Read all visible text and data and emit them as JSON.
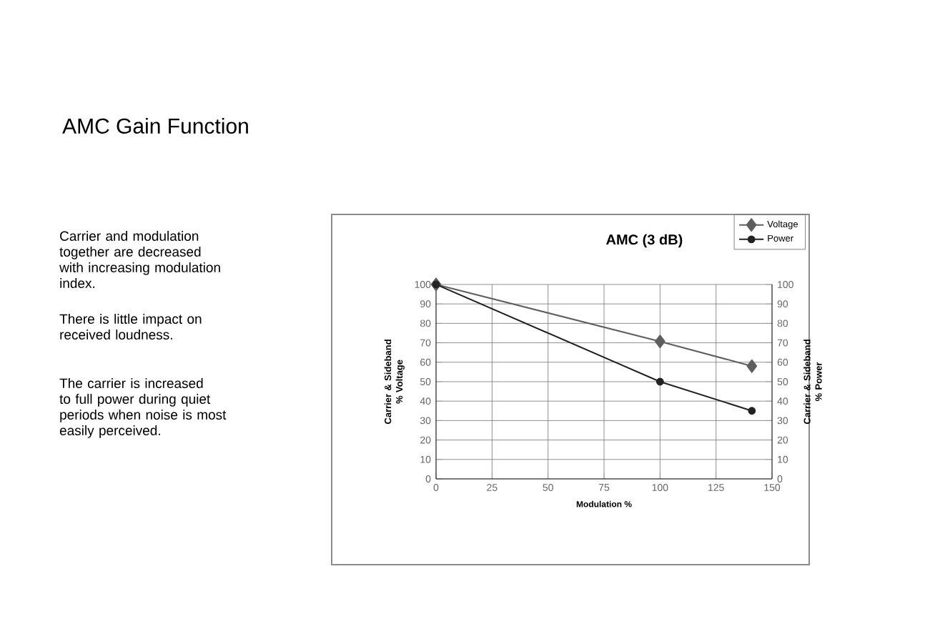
{
  "chart_data": {
    "type": "line",
    "title": "AMC Gain Function",
    "subtitle": "AMC (3 dB)",
    "xlabel": "Modulation %",
    "ylabel": "Carrier & Sideband % Voltage",
    "y2label": "Carrier & Sideband % Power",
    "annotations": [
      "Carrier and modulation together are decreased with increasing modulation index.",
      "There is little impact on received loudness.",
      "The carrier is increased to full power during quiet periods when noise is most easily perceived."
    ],
    "x": [
      0,
      100,
      141
    ],
    "series": [
      {
        "name": "Voltage",
        "color": "#5e5e5e",
        "marker": "diamond",
        "values": [
          100,
          70.7,
          58
        ]
      },
      {
        "name": "Power",
        "color": "#222222",
        "marker": "circle",
        "axis": "y2",
        "values": [
          100,
          50,
          35
        ]
      }
    ],
    "xlim": [
      0,
      150
    ],
    "xticks": [
      0,
      25,
      50,
      75,
      100,
      125,
      150
    ],
    "ylim": [
      0,
      100
    ],
    "yticks": [
      0,
      10,
      20,
      30,
      40,
      50,
      60,
      70,
      80,
      90,
      100
    ],
    "y2lim": [
      0,
      100
    ],
    "y2ticks": [
      0,
      10,
      20,
      30,
      40,
      50,
      60,
      70,
      80,
      90,
      100
    ],
    "grid": true,
    "legend": "top right",
    "line_style": "solid"
  }
}
